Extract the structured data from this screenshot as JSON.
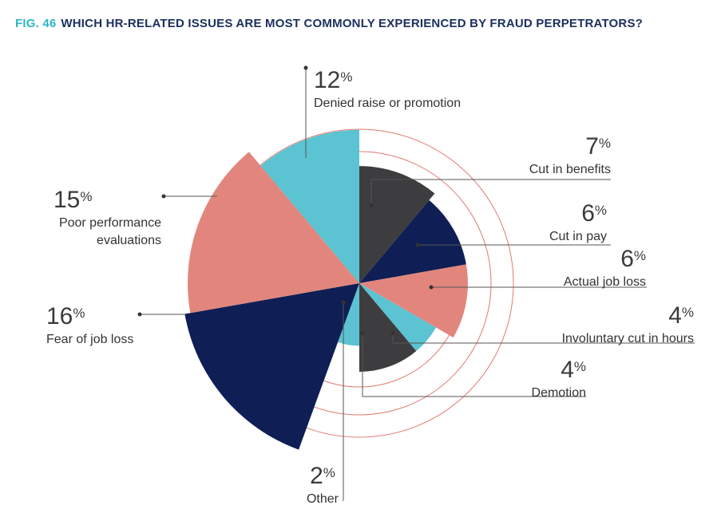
{
  "title": {
    "fig": "FIG. 46",
    "question": "WHICH HR-RELATED ISSUES ARE MOST COMMONLY EXPERIENCED BY FRAUD PERPETRATORS?"
  },
  "colors": {
    "teal": "#5bc3d1",
    "navy": "#0f1f55",
    "salmon": "#e2867d",
    "charcoal": "#3d3d40",
    "ring": "#e07a72",
    "title_accent": "#2bb7c8",
    "title_dark": "#1b2f5e"
  },
  "chart_data": {
    "type": "polar-area",
    "unit": "%",
    "categories": [
      "Cut in benefits",
      "Cut in pay",
      "Actual job loss",
      "Involuntary cut in hours",
      "Demotion",
      "Other",
      "Fear of job loss",
      "Poor performance evaluations",
      "Denied raise or promotion"
    ],
    "values": [
      7,
      6,
      6,
      4,
      4,
      2,
      16,
      15,
      12
    ],
    "value_labels": [
      "7",
      "6",
      "6",
      "4",
      "4",
      "2",
      "16",
      "15",
      "12"
    ],
    "slice_colors": [
      "charcoal",
      "navy",
      "salmon",
      "teal",
      "charcoal",
      "teal",
      "navy",
      "salmon",
      "teal"
    ],
    "reference_rings": 3
  }
}
